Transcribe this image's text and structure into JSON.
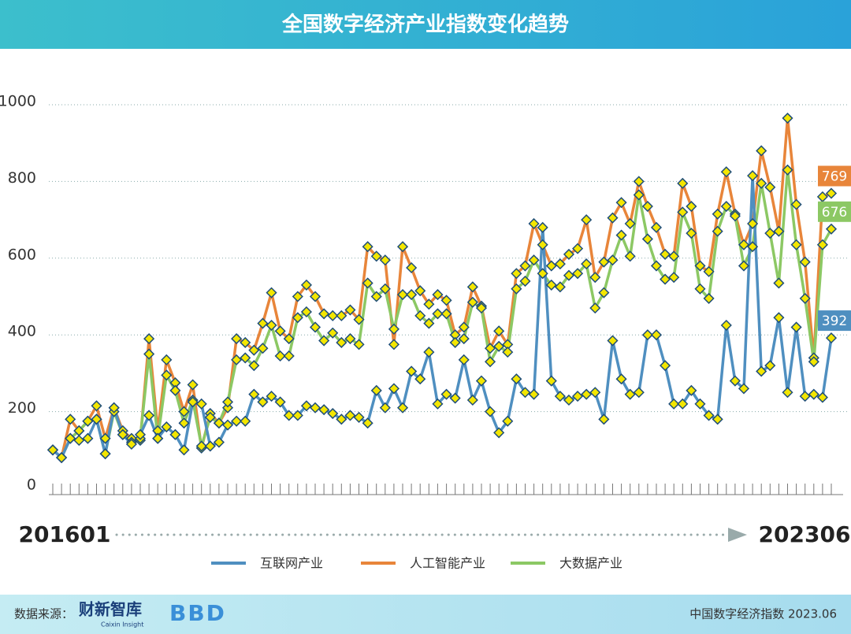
{
  "chart_data": {
    "type": "line",
    "title": "全国数字经济产业指数变化趋势",
    "categories": [
      "201601",
      null,
      null,
      null,
      null,
      null,
      null,
      null,
      null,
      null,
      null,
      null,
      null,
      null,
      null,
      null,
      null,
      null,
      null,
      null,
      null,
      null,
      null,
      null,
      null,
      null,
      null,
      null,
      null,
      null,
      null,
      null,
      null,
      null,
      null,
      null,
      null,
      null,
      null,
      null,
      null,
      null,
      null,
      null,
      null,
      null,
      null,
      null,
      null,
      null,
      null,
      null,
      null,
      null,
      null,
      null,
      null,
      null,
      null,
      null,
      null,
      null,
      null,
      null,
      null,
      null,
      null,
      null,
      null,
      null,
      null,
      null,
      null,
      null,
      null,
      null,
      null,
      null,
      null,
      null,
      null,
      null,
      null,
      null,
      null,
      null,
      null,
      null,
      null,
      "202306"
    ],
    "ylim": [
      0,
      1000
    ],
    "yticks": [
      0,
      200,
      400,
      600,
      800,
      1000
    ],
    "grid": true,
    "legend": "bottom",
    "marker_color": "#f3e600",
    "series": [
      {
        "name": "互联网产业",
        "color": "#4f8fc0",
        "values": [
          100,
          80,
          130,
          125,
          130,
          180,
          90,
          210,
          140,
          115,
          140,
          190,
          130,
          160,
          140,
          100,
          225,
          220,
          110,
          120,
          165,
          175,
          175,
          245,
          225,
          240,
          225,
          190,
          190,
          215,
          210,
          205,
          195,
          180,
          190,
          185,
          170,
          255,
          210,
          260,
          210,
          305,
          285,
          355,
          220,
          245,
          235,
          335,
          230,
          280,
          200,
          145,
          175,
          285,
          250,
          245,
          680,
          280,
          240,
          230,
          240,
          245,
          250,
          180,
          385,
          285,
          245,
          250,
          400,
          400,
          320,
          220,
          220,
          255,
          220,
          190,
          180,
          425,
          280,
          260,
          815,
          305,
          320,
          445,
          250,
          420,
          240,
          245,
          237,
          392
        ]
      },
      {
        "name": "人工智能产业",
        "color": "#e8853a",
        "values": [
          100,
          80,
          180,
          150,
          175,
          215,
          130,
          210,
          150,
          130,
          125,
          390,
          150,
          335,
          275,
          200,
          270,
          105,
          195,
          170,
          210,
          390,
          380,
          360,
          430,
          510,
          410,
          390,
          500,
          530,
          500,
          455,
          450,
          450,
          465,
          440,
          630,
          605,
          595,
          375,
          630,
          575,
          515,
          480,
          505,
          490,
          400,
          420,
          525,
          475,
          365,
          410,
          375,
          560,
          580,
          690,
          635,
          580,
          585,
          610,
          625,
          700,
          550,
          590,
          705,
          745,
          690,
          800,
          735,
          680,
          610,
          605,
          795,
          735,
          580,
          565,
          715,
          825,
          715,
          635,
          690,
          880,
          785,
          670,
          965,
          740,
          590,
          340,
          760,
          769
        ]
      },
      {
        "name": "大数据产业",
        "color": "#8cc864",
        "values": [
          100,
          80,
          130,
          150,
          175,
          180,
          90,
          200,
          140,
          120,
          130,
          350,
          130,
          295,
          255,
          170,
          230,
          110,
          185,
          170,
          225,
          335,
          340,
          320,
          365,
          425,
          345,
          345,
          445,
          460,
          420,
          385,
          405,
          380,
          390,
          375,
          535,
          500,
          520,
          415,
          505,
          505,
          450,
          430,
          455,
          455,
          380,
          390,
          485,
          470,
          330,
          370,
          355,
          520,
          540,
          595,
          560,
          530,
          525,
          555,
          560,
          585,
          470,
          510,
          595,
          660,
          605,
          765,
          650,
          580,
          545,
          550,
          720,
          665,
          520,
          495,
          670,
          735,
          710,
          580,
          630,
          795,
          665,
          535,
          830,
          635,
          495,
          330,
          635,
          676
        ]
      }
    ]
  },
  "footer": {
    "source_label": "数据来源：",
    "logo_text": "财新智库",
    "logo_subtext": "Caixin Insight",
    "logo2": "BBD",
    "note": "中国数字经济指数 2023.06"
  }
}
